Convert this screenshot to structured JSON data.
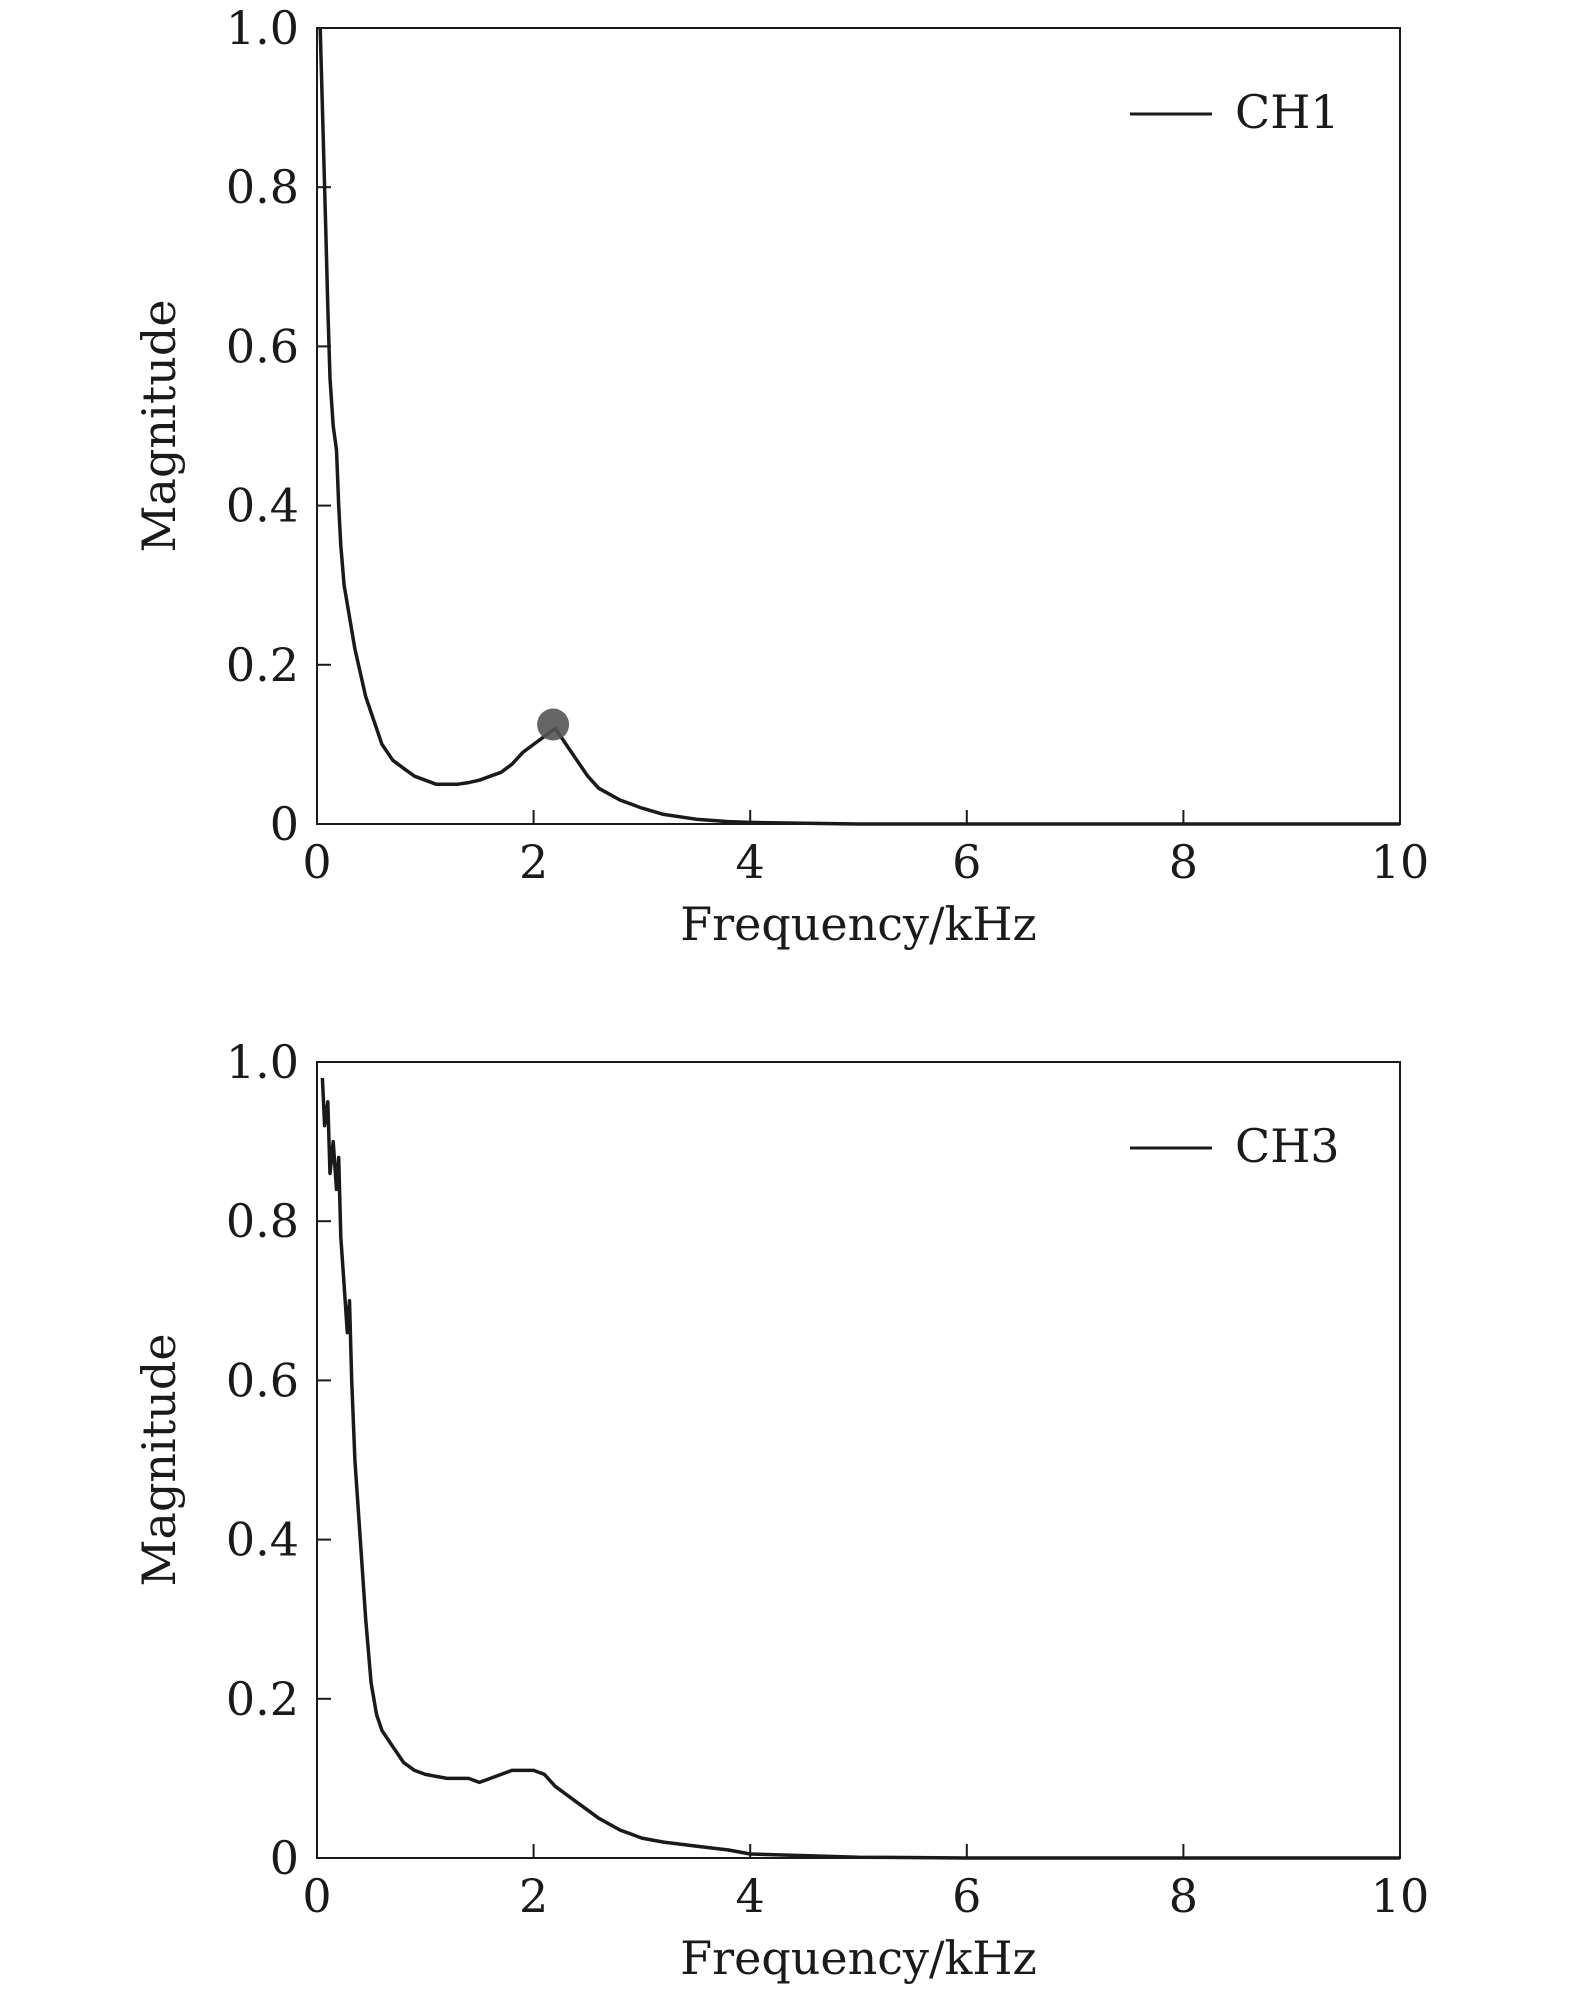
{
  "chart_data": [
    {
      "type": "line",
      "title": "",
      "xlabel": "Frequency/kHz",
      "ylabel": "Magnitude",
      "xlim": [
        0,
        10
      ],
      "ylim": [
        0,
        1.0
      ],
      "x_ticks": [
        0,
        2,
        4,
        6,
        8,
        10
      ],
      "y_ticks": [
        0,
        0.2,
        0.4,
        0.6,
        0.8,
        1.0
      ],
      "x_tick_labels": [
        "0",
        "2",
        "4",
        "6",
        "8",
        "10"
      ],
      "y_tick_labels": [
        "0",
        "0.2",
        "0.4",
        "0.6",
        "0.8",
        "1.0"
      ],
      "grid": false,
      "legend_position": "top-right",
      "line_color": "#1a1a1a",
      "series": [
        {
          "name": "CH1",
          "x": [
            0.03,
            0.05,
            0.08,
            0.1,
            0.12,
            0.15,
            0.18,
            0.2,
            0.22,
            0.25,
            0.3,
            0.35,
            0.4,
            0.45,
            0.5,
            0.6,
            0.7,
            0.8,
            0.9,
            1.0,
            1.1,
            1.2,
            1.3,
            1.4,
            1.5,
            1.6,
            1.7,
            1.8,
            1.9,
            2.0,
            2.1,
            2.15,
            2.2,
            2.25,
            2.3,
            2.4,
            2.5,
            2.6,
            2.8,
            3.0,
            3.2,
            3.5,
            3.8,
            4.0,
            4.5,
            5.0,
            6.0,
            7.0,
            8.0,
            9.0,
            10.0
          ],
          "y": [
            1.0,
            0.9,
            0.75,
            0.65,
            0.56,
            0.5,
            0.47,
            0.4,
            0.35,
            0.3,
            0.26,
            0.22,
            0.19,
            0.16,
            0.14,
            0.1,
            0.08,
            0.07,
            0.06,
            0.055,
            0.05,
            0.05,
            0.05,
            0.052,
            0.055,
            0.06,
            0.065,
            0.075,
            0.09,
            0.1,
            0.11,
            0.115,
            0.12,
            0.11,
            0.1,
            0.08,
            0.06,
            0.045,
            0.03,
            0.02,
            0.012,
            0.006,
            0.003,
            0.002,
            0.001,
            0.0,
            0.0,
            0.0,
            0.0,
            0.0,
            0.0
          ]
        }
      ],
      "marker": {
        "x": 2.18,
        "y": 0.125,
        "color": "#555555"
      }
    },
    {
      "type": "line",
      "title": "",
      "xlabel": "Frequency/kHz",
      "ylabel": "Magnitude",
      "xlim": [
        0,
        10
      ],
      "ylim": [
        0,
        1.0
      ],
      "x_ticks": [
        0,
        2,
        4,
        6,
        8,
        10
      ],
      "y_ticks": [
        0,
        0.2,
        0.4,
        0.6,
        0.8,
        1.0
      ],
      "x_tick_labels": [
        "0",
        "2",
        "4",
        "6",
        "8",
        "10"
      ],
      "y_tick_labels": [
        "0",
        "0.2",
        "0.4",
        "0.6",
        "0.8",
        "1.0"
      ],
      "grid": false,
      "legend_position": "top-right",
      "line_color": "#1a1a1a",
      "series": [
        {
          "name": "CH3",
          "x": [
            0.05,
            0.07,
            0.1,
            0.12,
            0.15,
            0.18,
            0.2,
            0.22,
            0.25,
            0.28,
            0.3,
            0.32,
            0.35,
            0.4,
            0.45,
            0.5,
            0.55,
            0.6,
            0.7,
            0.8,
            0.9,
            1.0,
            1.2,
            1.4,
            1.5,
            1.6,
            1.7,
            1.8,
            2.0,
            2.1,
            2.2,
            2.3,
            2.4,
            2.5,
            2.6,
            2.8,
            3.0,
            3.2,
            3.5,
            3.8,
            4.0,
            4.5,
            5.0,
            6.0,
            7.0,
            8.0,
            9.0,
            10.0
          ],
          "y": [
            0.98,
            0.92,
            0.95,
            0.86,
            0.9,
            0.84,
            0.88,
            0.78,
            0.72,
            0.66,
            0.7,
            0.6,
            0.5,
            0.4,
            0.3,
            0.22,
            0.18,
            0.16,
            0.14,
            0.12,
            0.11,
            0.105,
            0.1,
            0.1,
            0.095,
            0.1,
            0.105,
            0.11,
            0.11,
            0.105,
            0.09,
            0.08,
            0.07,
            0.06,
            0.05,
            0.035,
            0.025,
            0.02,
            0.015,
            0.01,
            0.005,
            0.003,
            0.001,
            0.0,
            0.0,
            0.0,
            0.0,
            0.0
          ]
        }
      ]
    }
  ]
}
